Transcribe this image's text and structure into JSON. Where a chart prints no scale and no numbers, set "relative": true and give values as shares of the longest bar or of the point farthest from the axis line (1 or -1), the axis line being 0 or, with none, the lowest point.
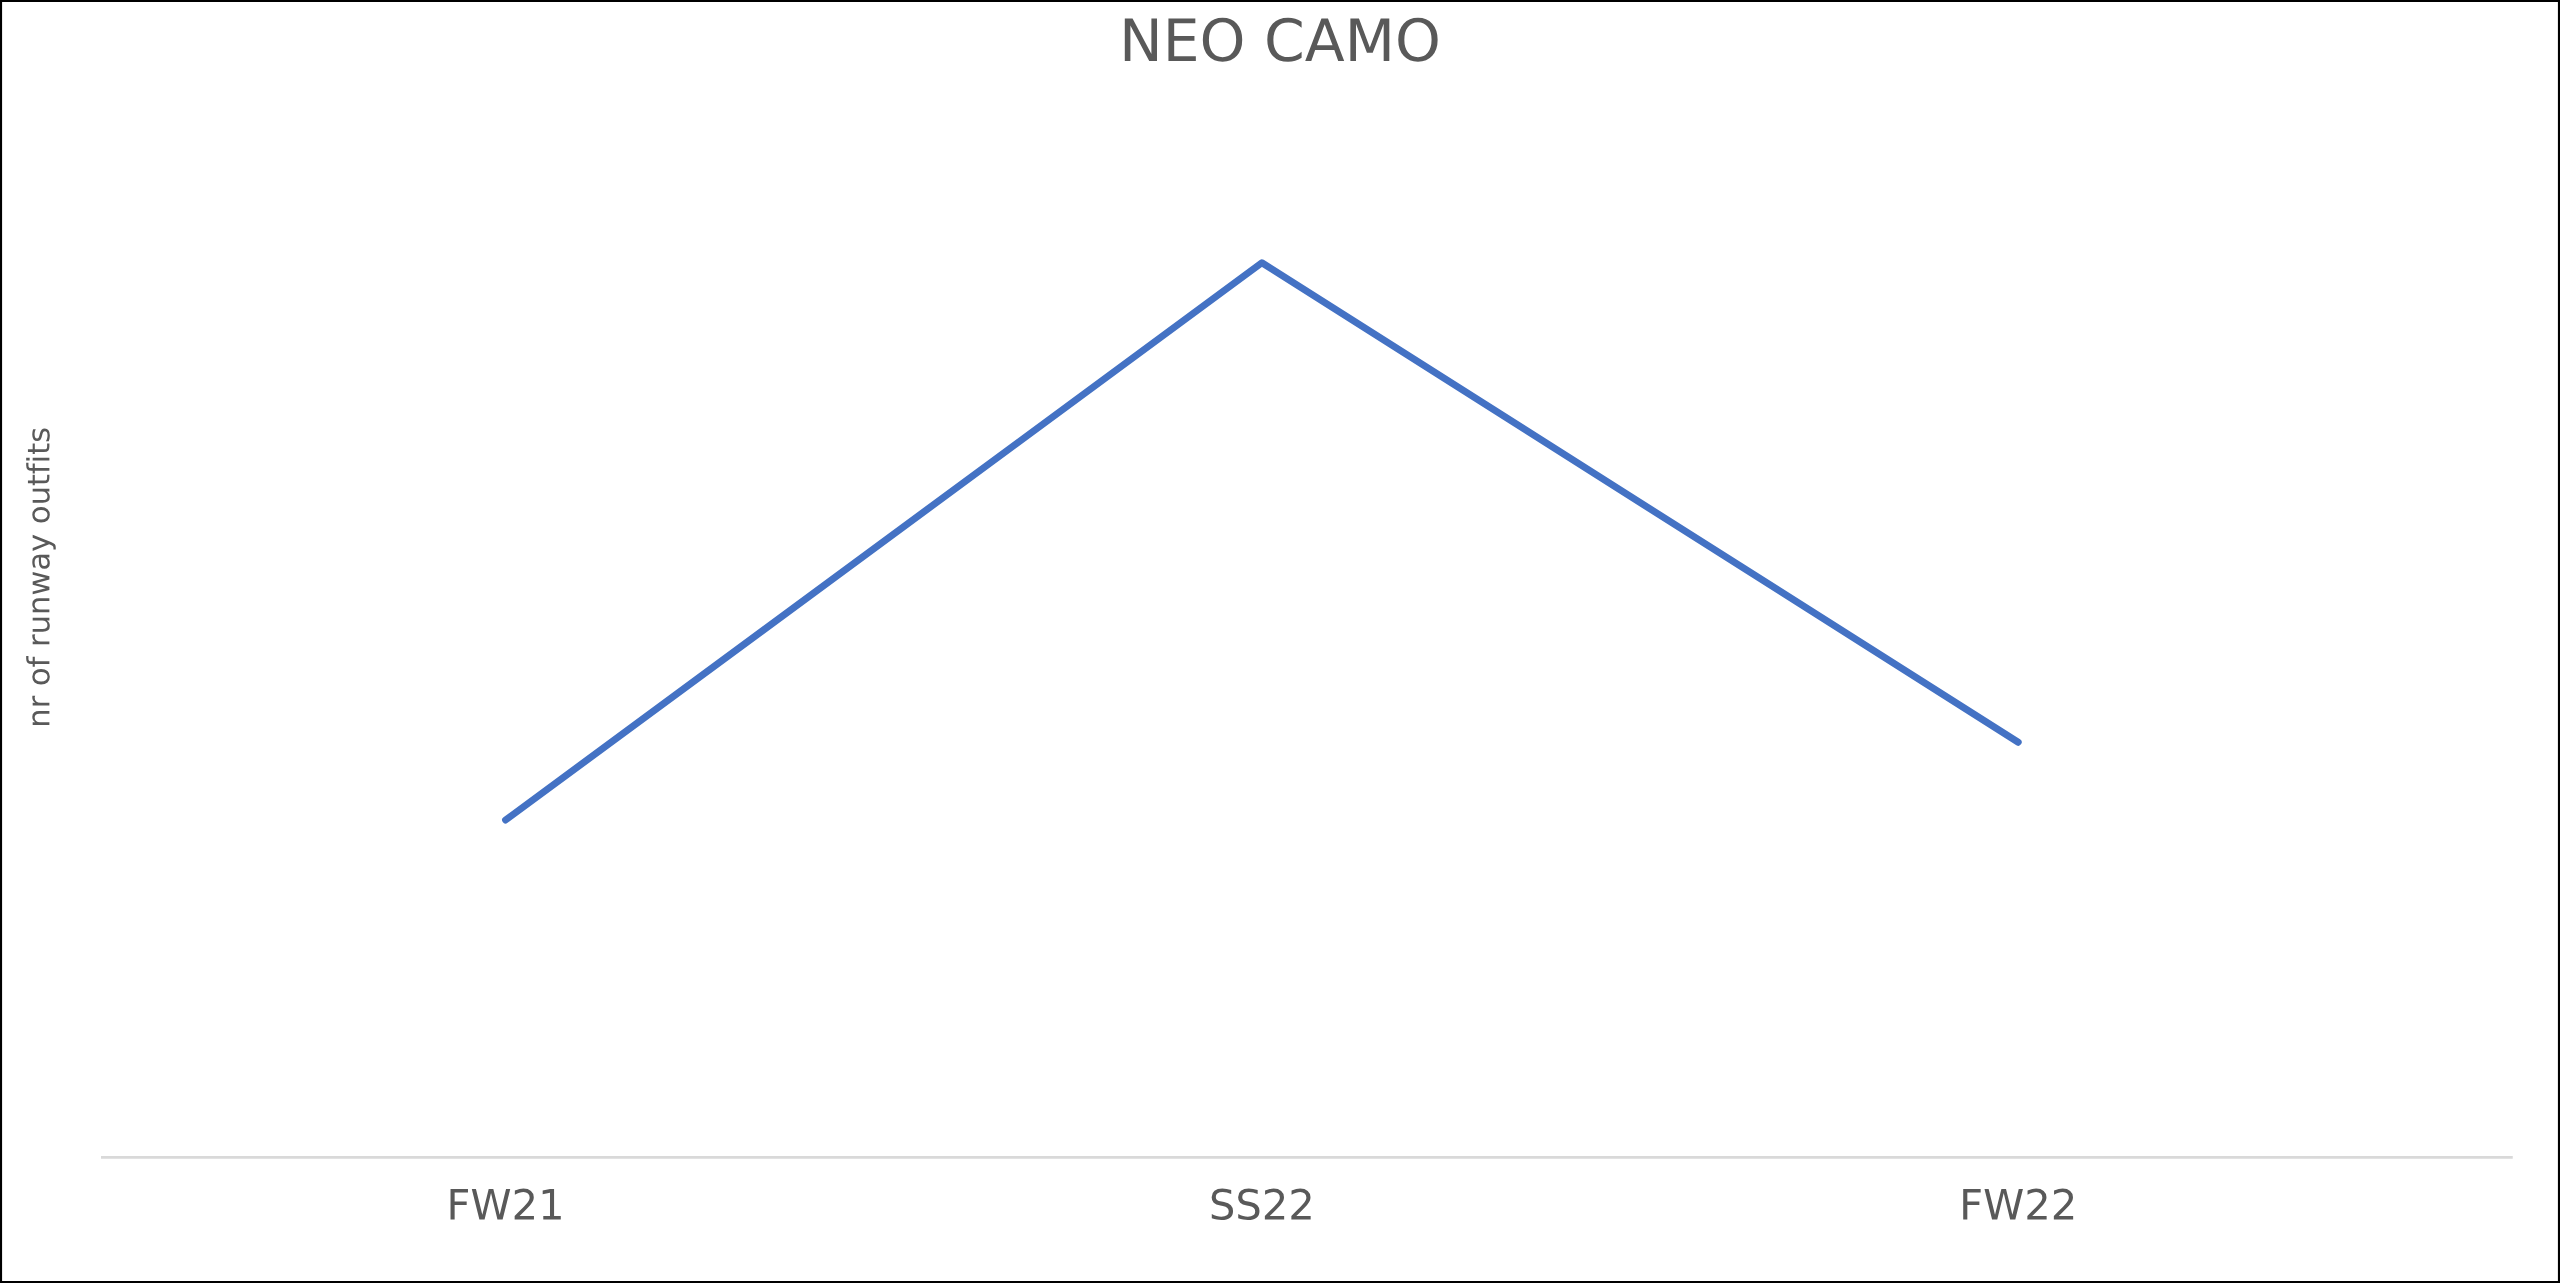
{
  "chart_data": {
    "type": "line",
    "title": "NEO CAMO",
    "ylabel": "nr of runway outfits",
    "relative": true,
    "categories": [
      "FW21",
      "SS22",
      "FW22"
    ],
    "series": [
      {
        "color": "#4472c4",
        "values": [
          0.377,
          1,
          0.464
        ]
      }
    ],
    "grid": false,
    "marker": "none",
    "line_style": "solid"
  }
}
